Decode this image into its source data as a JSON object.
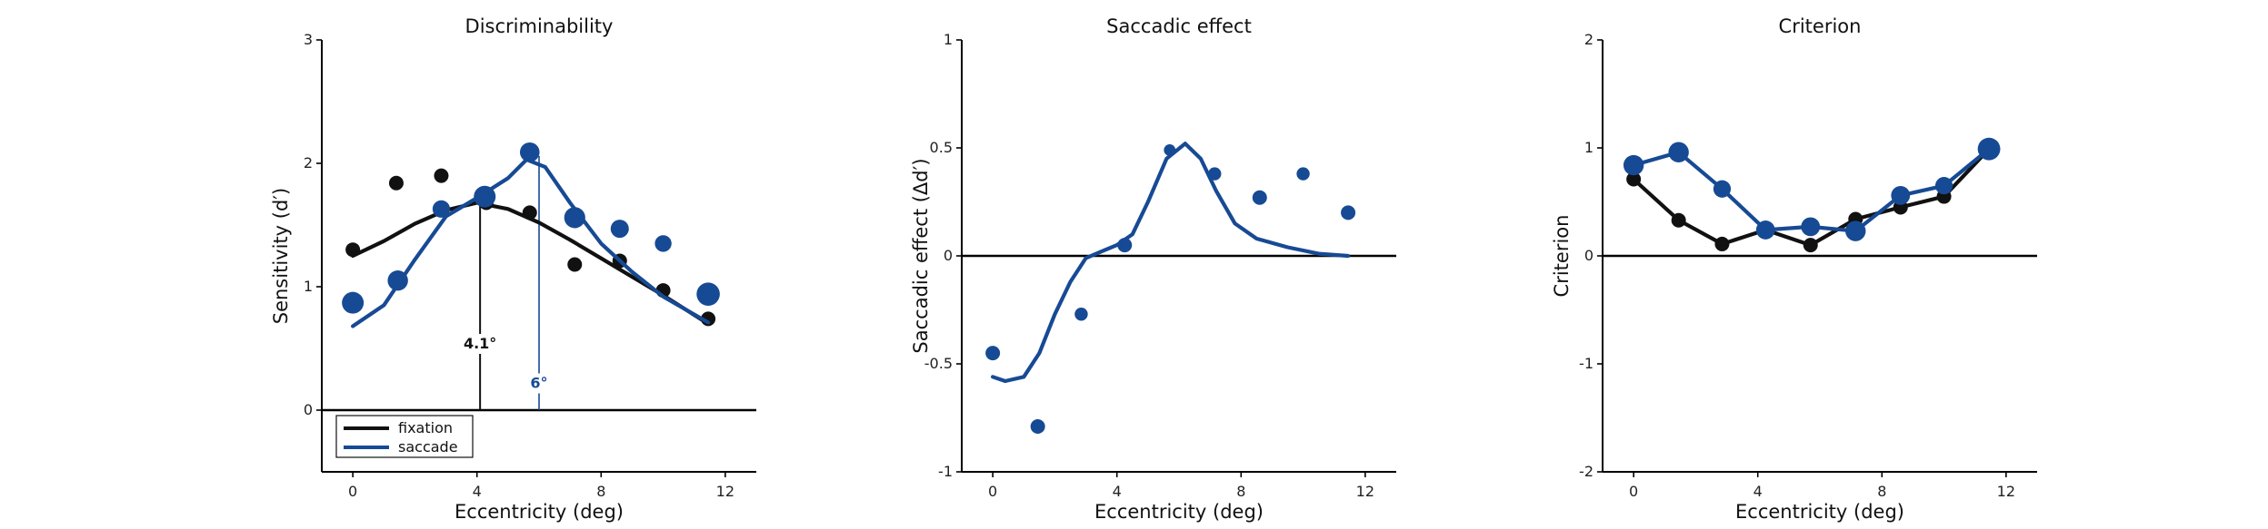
{
  "colors": {
    "fixation": "#111111",
    "saccade": "#174a94"
  },
  "chart_data": [
    {
      "type": "scatter",
      "title": "Discriminability",
      "xlabel": "Eccentricity (deg)",
      "ylabel": "Sensitivity (d′)",
      "xlim": [
        -1,
        13
      ],
      "ylim": [
        -0.5,
        3
      ],
      "xticks": [
        0,
        4,
        8,
        12
      ],
      "yticks": [
        0,
        1,
        2,
        3
      ],
      "zero_line": true,
      "legend": {
        "placement": "bottom-left",
        "entries": [
          "fixation",
          "saccade"
        ]
      },
      "series": [
        {
          "name": "fixation",
          "color_key": "fixation",
          "points": [
            {
              "x": 0,
              "y": 1.3,
              "s": 1
            },
            {
              "x": 1.4,
              "y": 1.84,
              "s": 1
            },
            {
              "x": 2.85,
              "y": 1.9,
              "s": 1
            },
            {
              "x": 4.3,
              "y": 1.68,
              "s": 1
            },
            {
              "x": 5.7,
              "y": 1.6,
              "s": 1
            },
            {
              "x": 7.15,
              "y": 1.18,
              "s": 1
            },
            {
              "x": 8.6,
              "y": 1.21,
              "s": 1
            },
            {
              "x": 10.0,
              "y": 0.97,
              "s": 1
            },
            {
              "x": 11.45,
              "y": 0.74,
              "s": 1
            }
          ],
          "curve": [
            [
              0,
              1.25
            ],
            [
              1,
              1.37
            ],
            [
              2,
              1.51
            ],
            [
              3,
              1.62
            ],
            [
              4,
              1.68
            ],
            [
              5,
              1.63
            ],
            [
              6,
              1.52
            ],
            [
              7,
              1.38
            ],
            [
              8,
              1.23
            ],
            [
              9,
              1.08
            ],
            [
              10,
              0.93
            ],
            [
              11.45,
              0.7
            ]
          ]
        },
        {
          "name": "saccade",
          "color_key": "saccade",
          "points": [
            {
              "x": 0,
              "y": 0.87,
              "s": 1.5
            },
            {
              "x": 1.45,
              "y": 1.05,
              "s": 1.4
            },
            {
              "x": 2.85,
              "y": 1.63,
              "s": 1.2
            },
            {
              "x": 4.25,
              "y": 1.73,
              "s": 1.5
            },
            {
              "x": 5.7,
              "y": 2.09,
              "s": 1.35
            },
            {
              "x": 7.15,
              "y": 1.56,
              "s": 1.45
            },
            {
              "x": 8.6,
              "y": 1.47,
              "s": 1.25
            },
            {
              "x": 10.0,
              "y": 1.35,
              "s": 1.15
            },
            {
              "x": 11.45,
              "y": 0.94,
              "s": 1.6
            }
          ],
          "curve": [
            [
              0,
              0.68
            ],
            [
              1,
              0.85
            ],
            [
              2,
              1.22
            ],
            [
              3,
              1.57
            ],
            [
              4,
              1.72
            ],
            [
              5,
              1.88
            ],
            [
              5.6,
              2.03
            ],
            [
              6.2,
              1.97
            ],
            [
              7,
              1.68
            ],
            [
              8,
              1.35
            ],
            [
              9,
              1.12
            ],
            [
              10,
              0.92
            ],
            [
              11.45,
              0.71
            ]
          ]
        }
      ],
      "annotations": [
        {
          "text": "4.1°",
          "x": 4.1,
          "line_top": 1.68,
          "label_y": 0.5,
          "color_key": "fixation"
        },
        {
          "text": "6°",
          "x": 6.0,
          "line_top": 2.06,
          "label_y": 0.18,
          "color_key": "saccade"
        }
      ]
    },
    {
      "type": "scatter",
      "title": "Saccadic effect",
      "xlabel": "Eccentricity (deg)",
      "ylabel": "Saccadic effect (Δd′)",
      "xlim": [
        -1,
        13
      ],
      "ylim": [
        -1,
        1
      ],
      "xticks": [
        0,
        4,
        8,
        12
      ],
      "yticks": [
        -1,
        -0.5,
        0,
        0.5,
        1
      ],
      "zero_line": true,
      "series": [
        {
          "name": "saccade",
          "color_key": "saccade",
          "points": [
            {
              "x": 0,
              "y": -0.45,
              "s": 1
            },
            {
              "x": 1.45,
              "y": -0.79,
              "s": 1
            },
            {
              "x": 2.85,
              "y": -0.27,
              "s": 0.9
            },
            {
              "x": 4.25,
              "y": 0.05,
              "s": 1
            },
            {
              "x": 5.7,
              "y": 0.49,
              "s": 0.8
            },
            {
              "x": 7.15,
              "y": 0.38,
              "s": 0.9
            },
            {
              "x": 8.6,
              "y": 0.27,
              "s": 1
            },
            {
              "x": 10.0,
              "y": 0.38,
              "s": 0.9
            },
            {
              "x": 11.45,
              "y": 0.2,
              "s": 1
            }
          ],
          "curve": [
            [
              0,
              -0.56
            ],
            [
              0.4,
              -0.58
            ],
            [
              1,
              -0.56
            ],
            [
              1.5,
              -0.45
            ],
            [
              2,
              -0.27
            ],
            [
              2.5,
              -0.12
            ],
            [
              3,
              -0.01
            ],
            [
              3.5,
              0.02
            ],
            [
              4,
              0.05
            ],
            [
              4.5,
              0.1
            ],
            [
              5,
              0.25
            ],
            [
              5.6,
              0.45
            ],
            [
              6.2,
              0.52
            ],
            [
              6.7,
              0.45
            ],
            [
              7.2,
              0.3
            ],
            [
              7.8,
              0.15
            ],
            [
              8.5,
              0.08
            ],
            [
              9.5,
              0.04
            ],
            [
              10.5,
              0.01
            ],
            [
              11.45,
              0.0
            ]
          ]
        }
      ]
    },
    {
      "type": "line",
      "title": "Criterion",
      "xlabel": "Eccentricity (deg)",
      "ylabel": "Criterion",
      "xlim": [
        -1,
        13
      ],
      "ylim": [
        -2,
        2
      ],
      "xticks": [
        0,
        4,
        8,
        12
      ],
      "yticks": [
        -2,
        -1,
        0,
        1,
        2
      ],
      "zero_line": true,
      "series": [
        {
          "name": "fixation",
          "color_key": "fixation",
          "points": [
            {
              "x": 0,
              "y": 0.71,
              "s": 1
            },
            {
              "x": 1.45,
              "y": 0.33,
              "s": 1
            },
            {
              "x": 2.85,
              "y": 0.11,
              "s": 1
            },
            {
              "x": 4.25,
              "y": 0.24,
              "s": 1
            },
            {
              "x": 5.7,
              "y": 0.1,
              "s": 1
            },
            {
              "x": 7.15,
              "y": 0.34,
              "s": 1
            },
            {
              "x": 8.6,
              "y": 0.45,
              "s": 1
            },
            {
              "x": 10.0,
              "y": 0.55,
              "s": 1
            },
            {
              "x": 11.45,
              "y": 0.99,
              "s": 1
            }
          ],
          "connect": true
        },
        {
          "name": "saccade",
          "color_key": "saccade",
          "points": [
            {
              "x": 0,
              "y": 0.84,
              "s": 1.4
            },
            {
              "x": 1.45,
              "y": 0.96,
              "s": 1.4
            },
            {
              "x": 2.85,
              "y": 0.62,
              "s": 1.2
            },
            {
              "x": 4.25,
              "y": 0.24,
              "s": 1.3
            },
            {
              "x": 5.7,
              "y": 0.27,
              "s": 1.3
            },
            {
              "x": 7.15,
              "y": 0.23,
              "s": 1.4
            },
            {
              "x": 8.6,
              "y": 0.56,
              "s": 1.3
            },
            {
              "x": 10.0,
              "y": 0.65,
              "s": 1.2
            },
            {
              "x": 11.45,
              "y": 0.99,
              "s": 1.55
            }
          ],
          "connect": true
        }
      ]
    }
  ]
}
